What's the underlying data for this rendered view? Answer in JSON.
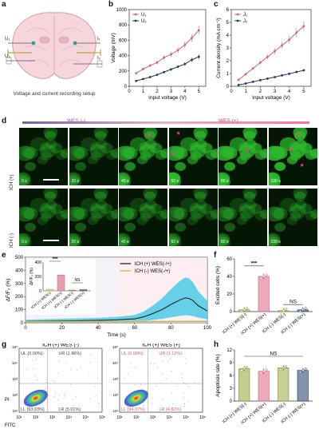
{
  "panels": {
    "a": {
      "label": "a",
      "caption": "Voltage and current recording setup",
      "probe_labels": [
        "U₁",
        "U₂",
        "I₁",
        "I₂"
      ]
    },
    "b": {
      "label": "b"
    },
    "c": {
      "label": "c"
    },
    "d": {
      "label": "d",
      "wes_neg": "WES (-)",
      "wes_pos": "WES (+)",
      "row1": "ICH (+)",
      "row2": "ICH (-)",
      "times": [
        "0 s",
        "20 s",
        "40 s",
        "60 s",
        "80 s",
        "100 s"
      ],
      "star": "*"
    },
    "e": {
      "label": "e"
    },
    "f": {
      "label": "f"
    },
    "g": {
      "label": "g"
    },
    "h": {
      "label": "h"
    }
  },
  "colors": {
    "pink": "#d4607a",
    "navy": "#1e3a5f",
    "black": "#111111",
    "gold": "#c8b040",
    "cyan": "#33c6e6",
    "olive": "#7a8a2a",
    "lightpink": "#f3c9d2",
    "green": "#2db82d"
  },
  "chart_data": [
    {
      "type": "line",
      "id": "b",
      "x": [
        0.5,
        1,
        1.5,
        2,
        2.5,
        3,
        3.5,
        4,
        4.5,
        5
      ],
      "series": [
        {
          "name": "U₁",
          "values": [
            170,
            225,
            270,
            310,
            375,
            415,
            470,
            540,
            630,
            730
          ]
        },
        {
          "name": "U₂",
          "values": [
            70,
            95,
            120,
            150,
            185,
            220,
            255,
            290,
            345,
            385
          ]
        }
      ],
      "xlabel": "Input voltage (V)",
      "ylabel": "Voltage (mV)",
      "xlim": [
        0,
        5.5
      ],
      "ylim": [
        0,
        1000
      ],
      "xticks": [
        0,
        1,
        2,
        3,
        4,
        5
      ],
      "yticks": [
        0,
        200,
        400,
        600,
        800,
        1000
      ],
      "legend": "top-left"
    },
    {
      "type": "line",
      "id": "c",
      "x": [
        0.5,
        1,
        1.5,
        2,
        2.5,
        3,
        3.5,
        4,
        4.5,
        5
      ],
      "series": [
        {
          "name": "J₁",
          "values": [
            0.5,
            0.95,
            1.4,
            1.85,
            2.3,
            2.75,
            3.2,
            3.65,
            4.2,
            4.7
          ]
        },
        {
          "name": "J₂",
          "values": [
            0.1,
            0.22,
            0.35,
            0.48,
            0.6,
            0.72,
            0.85,
            0.98,
            1.12,
            1.25
          ]
        }
      ],
      "xlabel": "Input voltage (V)",
      "ylabel": "Current density (mA cm⁻²)",
      "xlim": [
        0,
        5.5
      ],
      "ylim": [
        0,
        6
      ],
      "xticks": [
        0,
        1,
        2,
        3,
        4,
        5
      ],
      "yticks": [
        0,
        1,
        2,
        3,
        4,
        5,
        6
      ],
      "legend": "top-left"
    },
    {
      "type": "line",
      "id": "e",
      "xlabel": "Time (s)",
      "ylabel": "ΔF/F₀ (%)",
      "xlim": [
        0,
        100
      ],
      "ylim": [
        0,
        500
      ],
      "xticks": [
        0,
        20,
        40,
        60,
        80,
        100
      ],
      "yticks": [
        0,
        100,
        200,
        300,
        400,
        500
      ],
      "series": [
        {
          "name": "ICH (+) WES(-/+)",
          "x": [
            0,
            10,
            20,
            30,
            40,
            50,
            55,
            60,
            65,
            70,
            75,
            80,
            85,
            88,
            90,
            92,
            95,
            100
          ],
          "values": [
            10,
            12,
            14,
            16,
            18,
            22,
            26,
            30,
            45,
            70,
            100,
            140,
            175,
            190,
            185,
            170,
            130,
            90
          ]
        },
        {
          "name": "ICH (-) WES(-/+)",
          "x": [
            0,
            20,
            40,
            60,
            80,
            100
          ],
          "values": [
            5,
            6,
            7,
            8,
            9,
            10
          ]
        }
      ],
      "legend": "top-right",
      "inset": {
        "ylabel": "ΔF/F₀ (%)",
        "yticks": [
          0,
          200,
          400
        ],
        "categories": [
          "ICH (+) WES(-)",
          "ICH (+) WES(+)",
          "ICH (-) WES(-)",
          "ICH (-) WES(+)"
        ],
        "values": [
          20,
          220,
          10,
          15
        ],
        "sig": [
          "***",
          "NS"
        ]
      }
    },
    {
      "type": "bar",
      "id": "f",
      "ylabel": "Excited cells (%)",
      "ylim": [
        0,
        60
      ],
      "yticks": [
        0,
        20,
        40,
        60
      ],
      "categories": [
        "ICH (+) WES(-)",
        "ICH (+) WES(+)",
        "ICH (-) WES(-)",
        "ICH (-) WES(+)"
      ],
      "values": [
        2,
        40,
        1,
        2
      ],
      "sig": [
        "***",
        "NS"
      ]
    },
    {
      "type": "scatter",
      "id": "g",
      "plots": [
        {
          "title": "ICH (+) WES (-)",
          "quadrants": {
            "UL": "UL (0.00%)",
            "UR": "UR (1.96%)",
            "LL": "LL (93.03%)",
            "LR": "LR (5.01%)"
          }
        },
        {
          "title": "ICH (+) WES (+)",
          "quadrants": {
            "UL": "UL (0.00%)",
            "UR": "UR (1.12%)",
            "LL": "LL (94.07%)",
            "LR": "LR (4.82%)"
          }
        }
      ],
      "xlabel": "FITC",
      "ylabel": "PI",
      "xticks": [
        "10¹",
        "10²",
        "10³",
        "10⁴",
        "10⁵",
        "10⁶"
      ]
    },
    {
      "type": "bar",
      "id": "h",
      "ylabel": "Apoptosis rate (%)",
      "ylim": [
        0,
        12
      ],
      "yticks": [
        0,
        3,
        6,
        9,
        12
      ],
      "categories": [
        "ICH (+) WES(-)",
        "ICH (+) WES(+)",
        "ICH (-) WES(-)",
        "ICH (-) WES(+)"
      ],
      "values": [
        7.6,
        7.0,
        7.8,
        7.2
      ],
      "sig": [
        "NS"
      ]
    }
  ]
}
